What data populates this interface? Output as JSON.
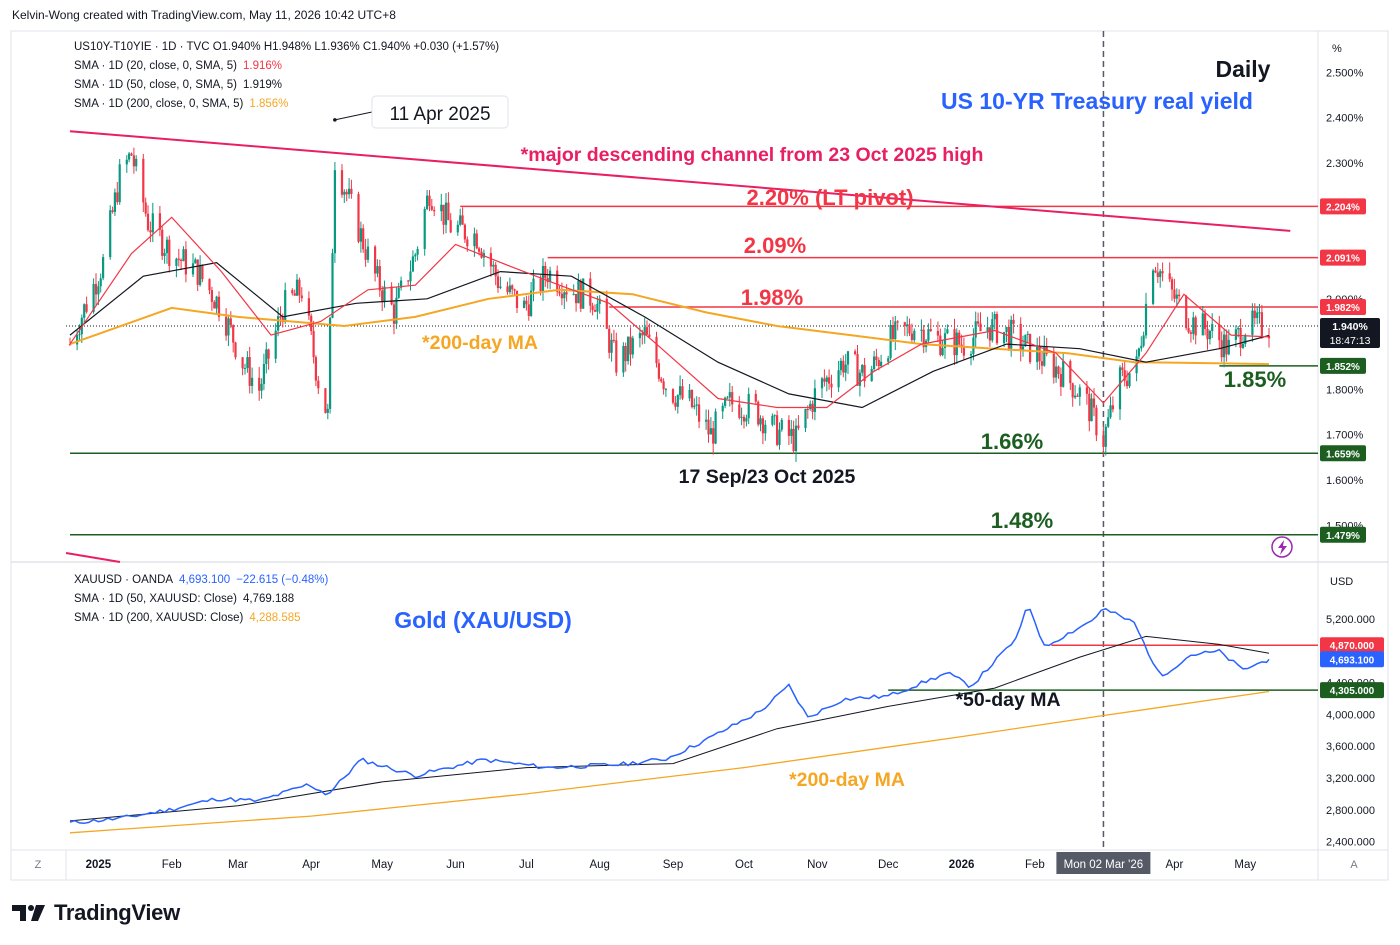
{
  "header": {
    "credit": "Kelvin-Wong created with TradingView.com, May 11, 2026 10:42 UTC+8"
  },
  "footer": {
    "brand": "TradingView"
  },
  "colors": {
    "up": "#089981",
    "down": "#f23645",
    "sma20": "#f23645",
    "sma50": "#131722",
    "sma200": "#f5a623",
    "gold": "#2962ff",
    "red_level": "#f23645",
    "green_level": "#1b5e20",
    "channel": "#e91e63"
  },
  "top_legend": [
    {
      "text": "US10Y-T10YIE · 1D · TVC  O1.940%  H1.948%  L1.936%  C1.940%  +0.030 (+1.57%)",
      "color": "#131722"
    },
    {
      "label": "SMA · 1D (20, close, 0, SMA, 5)",
      "value": "1.916%",
      "color": "#f23645"
    },
    {
      "label": "SMA · 1D (50, close, 0, SMA, 5)",
      "value": "1.919%",
      "color": "#131722"
    },
    {
      "label": "SMA · 1D (200, close, 0, SMA, 5)",
      "value": "1.856%",
      "color": "#f5a623"
    }
  ],
  "bottom_legend": [
    {
      "label": "XAUUSD · OANDA",
      "value": "4,693.100",
      "extra": "−22.615 (−0.48%)",
      "color": "#2962ff"
    },
    {
      "label": "SMA · 1D (50, XAUUSD: Close)",
      "value": "4,769.188",
      "color": "#131722"
    },
    {
      "label": "SMA · 1D (200, XAUUSD: Close)",
      "value": "4,288.585",
      "color": "#f5a623"
    }
  ],
  "top_axis": {
    "unit": "%",
    "ticks": [
      "2.500%",
      "2.400%",
      "2.300%",
      "2.000%",
      "1.800%",
      "1.700%",
      "1.600%",
      "1.500%"
    ]
  },
  "bottom_axis": {
    "unit": "USD",
    "ticks": [
      "5,200.000",
      "4,400.000",
      "4,000.000",
      "3,600.000",
      "3,200.000",
      "2,800.000",
      "2,400.000"
    ]
  },
  "x_axis": {
    "labels": [
      "2025",
      "Feb",
      "Mar",
      "Apr",
      "May",
      "Jun",
      "Jul",
      "Aug",
      "Sep",
      "Oct",
      "Nov",
      "Dec",
      "2026",
      "Feb",
      "Mon 02 Mar '26",
      "Apr",
      "May"
    ],
    "left_glyph": "Z",
    "right_glyph": "A"
  },
  "annotations": {
    "title": "Daily",
    "subtitle": "US 10-YR Treasury real yield",
    "apr_label": "11 Apr 2025",
    "channel": "*major descending channel from 23 Oct 2025 high",
    "lt_pivot": "2.20% (LT pivot)",
    "lvl_209": "2.09%",
    "lvl_198": "1.98%",
    "lvl_185": "1.85%",
    "lvl_166": "1.66%",
    "lvl_148": "1.48%",
    "top_ma": "*200-day MA",
    "sep_oct": "17 Sep/23 Oct 2025",
    "gold_title": "Gold (XAU/USD)",
    "gold_50": "*50-day MA",
    "gold_200": "*200-day MA"
  },
  "chart_data": [
    {
      "type": "candlestick",
      "title": "US 10-YR Treasury real yield",
      "series_label": "US10Y-T10YIE · 1D · TVC",
      "units": "%",
      "ylim": [
        1.45,
        2.58
      ],
      "x_range": [
        "2025-01-01",
        "2026-05-11"
      ],
      "last": {
        "open": 1.94,
        "high": 1.948,
        "low": 1.936,
        "close": 1.94,
        "change": "+0.030 (+1.57%)"
      },
      "close_path": [
        [
          "2024-12-20",
          1.9
        ],
        [
          "2025-01-03",
          2.08
        ],
        [
          "2025-01-10",
          2.27
        ],
        [
          "2025-01-15",
          2.32
        ],
        [
          "2025-01-22",
          2.17
        ],
        [
          "2025-02-01",
          2.1
        ],
        [
          "2025-02-12",
          2.06
        ],
        [
          "2025-02-22",
          1.98
        ],
        [
          "2025-03-03",
          1.86
        ],
        [
          "2025-03-10",
          1.8
        ],
        [
          "2025-03-20",
          1.98
        ],
        [
          "2025-03-28",
          2.02
        ],
        [
          "2025-04-04",
          1.82
        ],
        [
          "2025-04-08",
          1.74
        ],
        [
          "2025-04-11",
          2.31
        ],
        [
          "2025-04-18",
          2.2
        ],
        [
          "2025-04-28",
          2.05
        ],
        [
          "2025-05-06",
          1.97
        ],
        [
          "2025-05-15",
          2.1
        ],
        [
          "2025-05-21",
          2.24
        ],
        [
          "2025-05-30",
          2.16
        ],
        [
          "2025-06-10",
          2.14
        ],
        [
          "2025-06-20",
          2.03
        ],
        [
          "2025-06-30",
          1.98
        ],
        [
          "2025-07-10",
          2.06
        ],
        [
          "2025-07-20",
          2.02
        ],
        [
          "2025-07-30",
          2.0
        ],
        [
          "2025-08-08",
          1.86
        ],
        [
          "2025-08-20",
          1.92
        ],
        [
          "2025-08-30",
          1.8
        ],
        [
          "2025-09-08",
          1.77
        ],
        [
          "2025-09-17",
          1.7
        ],
        [
          "2025-09-25",
          1.77
        ],
        [
          "2025-10-05",
          1.76
        ],
        [
          "2025-10-14",
          1.71
        ],
        [
          "2025-10-23",
          1.69
        ],
        [
          "2025-11-01",
          1.8
        ],
        [
          "2025-11-12",
          1.86
        ],
        [
          "2025-11-22",
          1.83
        ],
        [
          "2025-12-02",
          1.91
        ],
        [
          "2025-12-12",
          1.94
        ],
        [
          "2025-12-22",
          1.91
        ],
        [
          "2026-01-02",
          1.9
        ],
        [
          "2026-01-12",
          1.94
        ],
        [
          "2026-01-22",
          1.92
        ],
        [
          "2026-02-01",
          1.88
        ],
        [
          "2026-02-12",
          1.84
        ],
        [
          "2026-02-22",
          1.78
        ],
        [
          "2026-03-02",
          1.69
        ],
        [
          "2026-03-09",
          1.82
        ],
        [
          "2026-03-16",
          1.85
        ],
        [
          "2026-03-23",
          2.09
        ],
        [
          "2026-03-31",
          2.01
        ],
        [
          "2026-04-08",
          1.95
        ],
        [
          "2026-04-16",
          1.93
        ],
        [
          "2026-04-24",
          1.89
        ],
        [
          "2026-05-01",
          1.94
        ],
        [
          "2026-05-11",
          1.94
        ]
      ],
      "sma20_path": [
        [
          "2024-12-20",
          1.9
        ],
        [
          "2025-01-15",
          2.1
        ],
        [
          "2025-02-01",
          2.18
        ],
        [
          "2025-02-22",
          2.06
        ],
        [
          "2025-03-15",
          1.92
        ],
        [
          "2025-04-05",
          1.95
        ],
        [
          "2025-04-25",
          2.02
        ],
        [
          "2025-05-15",
          2.03
        ],
        [
          "2025-06-01",
          2.12
        ],
        [
          "2025-06-25",
          2.07
        ],
        [
          "2025-07-15",
          2.03
        ],
        [
          "2025-08-05",
          1.99
        ],
        [
          "2025-08-25",
          1.9
        ],
        [
          "2025-09-20",
          1.78
        ],
        [
          "2025-10-15",
          1.76
        ],
        [
          "2025-11-05",
          1.76
        ],
        [
          "2025-11-25",
          1.84
        ],
        [
          "2025-12-15",
          1.9
        ],
        [
          "2026-01-15",
          1.93
        ],
        [
          "2026-02-10",
          1.88
        ],
        [
          "2026-03-02",
          1.77
        ],
        [
          "2026-03-20",
          1.88
        ],
        [
          "2026-04-05",
          2.01
        ],
        [
          "2026-04-25",
          1.92
        ],
        [
          "2026-05-11",
          1.916
        ]
      ],
      "sma50_path": [
        [
          "2024-12-20",
          1.92
        ],
        [
          "2025-01-20",
          2.05
        ],
        [
          "2025-02-20",
          2.08
        ],
        [
          "2025-03-20",
          1.96
        ],
        [
          "2025-04-20",
          1.99
        ],
        [
          "2025-05-20",
          2.0
        ],
        [
          "2025-06-20",
          2.06
        ],
        [
          "2025-07-20",
          2.05
        ],
        [
          "2025-08-20",
          1.96
        ],
        [
          "2025-09-20",
          1.86
        ],
        [
          "2025-10-20",
          1.79
        ],
        [
          "2025-11-20",
          1.76
        ],
        [
          "2025-12-20",
          1.84
        ],
        [
          "2026-01-20",
          1.9
        ],
        [
          "2026-02-20",
          1.89
        ],
        [
          "2026-03-20",
          1.86
        ],
        [
          "2026-04-20",
          1.89
        ],
        [
          "2026-05-11",
          1.919
        ]
      ],
      "sma200_path": [
        [
          "2024-12-20",
          1.9
        ],
        [
          "2025-02-01",
          1.98
        ],
        [
          "2025-03-01",
          1.96
        ],
        [
          "2025-04-15",
          1.94
        ],
        [
          "2025-05-15",
          1.96
        ],
        [
          "2025-06-15",
          2.0
        ],
        [
          "2025-07-15",
          2.02
        ],
        [
          "2025-08-15",
          2.01
        ],
        [
          "2025-09-15",
          1.97
        ],
        [
          "2025-10-15",
          1.94
        ],
        [
          "2025-11-15",
          1.92
        ],
        [
          "2025-12-15",
          1.9
        ],
        [
          "2026-01-15",
          1.89
        ],
        [
          "2026-02-15",
          1.88
        ],
        [
          "2026-03-15",
          1.86
        ],
        [
          "2026-04-15",
          1.858
        ],
        [
          "2026-05-11",
          1.856
        ]
      ],
      "channel_line": [
        [
          "2024-12-20",
          2.37
        ],
        [
          "2026-05-20",
          2.15
        ]
      ],
      "levels": [
        {
          "label": "2.204%",
          "value": 2.204,
          "from": "2025-06-03",
          "color": "#f23645"
        },
        {
          "label": "2.091%",
          "value": 2.091,
          "from": "2025-07-10",
          "color": "#f23645"
        },
        {
          "label": "1.982%",
          "value": 1.982,
          "from": "2025-08-05",
          "color": "#f23645"
        },
        {
          "label": "1.852%",
          "value": 1.852,
          "from": "2026-04-20",
          "color": "#1b5e20"
        },
        {
          "label": "1.659%",
          "value": 1.659,
          "from": "2024-12-20",
          "color": "#1b5e20"
        },
        {
          "label": "1.479%",
          "value": 1.479,
          "from": "2024-12-20",
          "color": "#1b5e20"
        }
      ],
      "last_price_label": "1.940%",
      "countdown": "18:47:13",
      "markers": {
        "apr_high_date": "2025-04-11",
        "apr_high_value": 2.395,
        "vline_date": "2026-03-02"
      }
    },
    {
      "type": "line",
      "title": "Gold (XAU/USD)",
      "series_label": "XAUUSD · OANDA",
      "units": "USD",
      "ylim": [
        2200,
        5500
      ],
      "close_path": [
        [
          "2024-12-20",
          2635
        ],
        [
          "2025-01-10",
          2690
        ],
        [
          "2025-01-31",
          2800
        ],
        [
          "2025-02-20",
          2940
        ],
        [
          "2025-03-10",
          2910
        ],
        [
          "2025-03-31",
          3120
        ],
        [
          "2025-04-08",
          2990
        ],
        [
          "2025-04-22",
          3430
        ],
        [
          "2025-05-15",
          3230
        ],
        [
          "2025-06-13",
          3430
        ],
        [
          "2025-07-10",
          3330
        ],
        [
          "2025-08-10",
          3370
        ],
        [
          "2025-08-29",
          3440
        ],
        [
          "2025-09-15",
          3680
        ],
        [
          "2025-10-08",
          4040
        ],
        [
          "2025-10-20",
          4360
        ],
        [
          "2025-10-28",
          3960
        ],
        [
          "2025-11-12",
          4190
        ],
        [
          "2025-12-01",
          4230
        ],
        [
          "2025-12-26",
          4520
        ],
        [
          "2026-01-05",
          4350
        ],
        [
          "2026-01-25",
          4980
        ],
        [
          "2026-01-29",
          5410
        ],
        [
          "2026-02-05",
          4850
        ],
        [
          "2026-02-25",
          5180
        ],
        [
          "2026-03-02",
          5330
        ],
        [
          "2026-03-15",
          5150
        ],
        [
          "2026-03-26",
          4470
        ],
        [
          "2026-04-08",
          4750
        ],
        [
          "2026-04-20",
          4790
        ],
        [
          "2026-04-30",
          4560
        ],
        [
          "2026-05-11",
          4693
        ]
      ],
      "sma50_path": [
        [
          "2024-12-20",
          2660
        ],
        [
          "2025-03-01",
          2850
        ],
        [
          "2025-05-01",
          3150
        ],
        [
          "2025-07-01",
          3330
        ],
        [
          "2025-09-01",
          3380
        ],
        [
          "2025-10-15",
          3820
        ],
        [
          "2025-12-01",
          4100
        ],
        [
          "2026-01-15",
          4330
        ],
        [
          "2026-02-20",
          4720
        ],
        [
          "2026-03-20",
          4980
        ],
        [
          "2026-04-20",
          4880
        ],
        [
          "2026-05-11",
          4769
        ]
      ],
      "sma200_path": [
        [
          "2024-12-20",
          2510
        ],
        [
          "2025-04-01",
          2720
        ],
        [
          "2025-07-01",
          3000
        ],
        [
          "2025-10-01",
          3330
        ],
        [
          "2026-01-01",
          3720
        ],
        [
          "2026-03-01",
          3980
        ],
        [
          "2026-05-11",
          4288
        ]
      ],
      "levels": [
        {
          "label": "4,870.000",
          "value": 4870,
          "from": "2026-02-08",
          "color": "#f23645"
        },
        {
          "label": "4,305.000",
          "value": 4305,
          "from": "2025-12-01",
          "color": "#1b5e20"
        }
      ],
      "last_price_label": "4,693.100"
    }
  ]
}
